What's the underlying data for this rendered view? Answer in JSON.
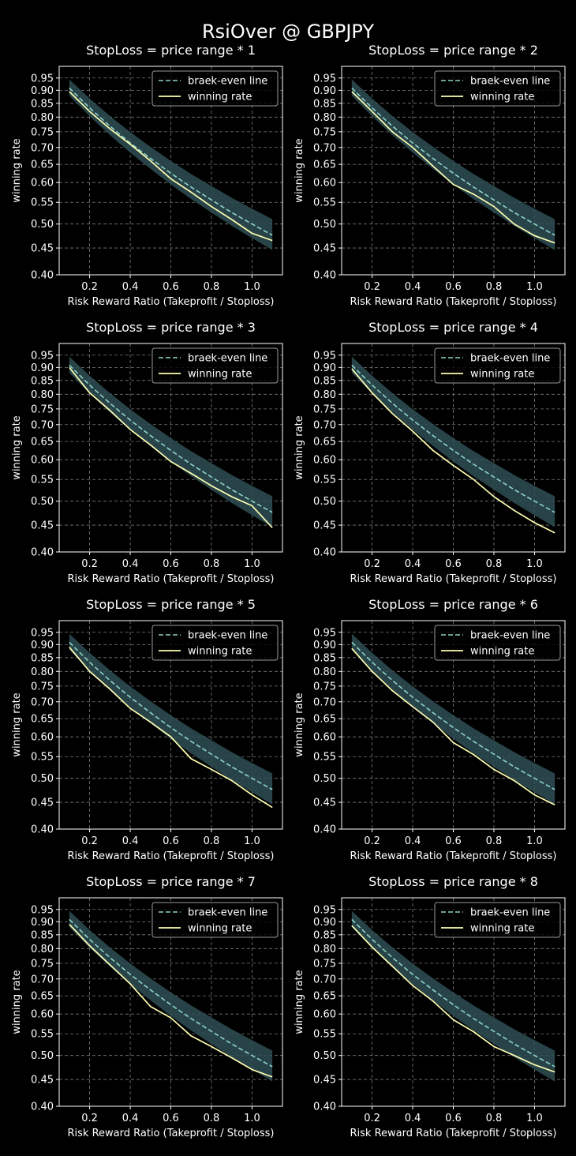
{
  "figure": {
    "title": "RsiOver @ GBPJPY"
  },
  "legend": {
    "breakeven_label": "braek-even line",
    "winrate_label": "winning rate"
  },
  "colors": {
    "background": "#000000",
    "breakeven_line": "#8dd3c7",
    "band_fill": "#2f4f55",
    "winrate_line": "#ffffb3",
    "grid": "#7a7a7a",
    "text": "#ffffff"
  },
  "chart_data": [
    {
      "type": "line",
      "title": "StopLoss = price range * 1",
      "xlabel": "Risk Reward Ratio (Takeprofit / Stoploss)",
      "ylabel": "winning rate",
      "xlim": [
        0.05,
        1.15
      ],
      "ylim": [
        0.4,
        1.0
      ],
      "yscale": "log",
      "xticks": [
        "0.2",
        "0.4",
        "0.6",
        "0.8",
        "1.0"
      ],
      "yticks": [
        "0.40",
        "0.45",
        "0.50",
        "0.55",
        "0.60",
        "0.65",
        "0.70",
        "0.75",
        "0.80",
        "0.85",
        "0.90",
        "0.95"
      ],
      "grid": true,
      "legend_position": "top-right",
      "x": [
        0.1,
        0.2,
        0.3,
        0.4,
        0.5,
        0.6,
        0.7,
        0.8,
        0.9,
        1.0,
        1.1
      ],
      "series": [
        {
          "name": "braek-even line",
          "values": [
            0.909,
            0.833,
            0.769,
            0.714,
            0.667,
            0.625,
            0.588,
            0.556,
            0.526,
            0.5,
            0.476
          ],
          "band": [
            0.03,
            0.035
          ]
        },
        {
          "name": "winning rate",
          "values": [
            0.895,
            0.82,
            0.76,
            0.71,
            0.66,
            0.61,
            0.575,
            0.54,
            0.51,
            0.48,
            0.465
          ]
        }
      ]
    },
    {
      "type": "line",
      "title": "StopLoss = price range * 2",
      "xlabel": "Risk Reward Ratio (Takeprofit / Stoploss)",
      "ylabel": "winning rate",
      "xlim": [
        0.05,
        1.15
      ],
      "ylim": [
        0.4,
        1.0
      ],
      "yscale": "log",
      "xticks": [
        "0.2",
        "0.4",
        "0.6",
        "0.8",
        "1.0"
      ],
      "yticks": [
        "0.40",
        "0.45",
        "0.50",
        "0.55",
        "0.60",
        "0.65",
        "0.70",
        "0.75",
        "0.80",
        "0.85",
        "0.90",
        "0.95"
      ],
      "grid": true,
      "legend_position": "top-right",
      "x": [
        0.1,
        0.2,
        0.3,
        0.4,
        0.5,
        0.6,
        0.7,
        0.8,
        0.9,
        1.0,
        1.1
      ],
      "series": [
        {
          "name": "braek-even line",
          "values": [
            0.909,
            0.833,
            0.769,
            0.714,
            0.667,
            0.625,
            0.588,
            0.556,
            0.526,
            0.5,
            0.476
          ],
          "band": [
            0.03,
            0.035
          ]
        },
        {
          "name": "winning rate",
          "values": [
            0.895,
            0.82,
            0.75,
            0.7,
            0.645,
            0.595,
            0.57,
            0.54,
            0.5,
            0.475,
            0.46
          ]
        }
      ]
    },
    {
      "type": "line",
      "title": "StopLoss = price range * 3",
      "xlabel": "Risk Reward Ratio (Takeprofit / Stoploss)",
      "ylabel": "winning rate",
      "xlim": [
        0.05,
        1.15
      ],
      "ylim": [
        0.4,
        1.0
      ],
      "yscale": "log",
      "xticks": [
        "0.2",
        "0.4",
        "0.6",
        "0.8",
        "1.0"
      ],
      "yticks": [
        "0.40",
        "0.45",
        "0.50",
        "0.55",
        "0.60",
        "0.65",
        "0.70",
        "0.75",
        "0.80",
        "0.85",
        "0.90",
        "0.95"
      ],
      "grid": true,
      "legend_position": "top-right",
      "x": [
        0.1,
        0.2,
        0.3,
        0.4,
        0.5,
        0.6,
        0.7,
        0.8,
        0.9,
        1.0,
        1.1
      ],
      "series": [
        {
          "name": "braek-even line",
          "values": [
            0.909,
            0.833,
            0.769,
            0.714,
            0.667,
            0.625,
            0.588,
            0.556,
            0.526,
            0.5,
            0.476
          ],
          "band": [
            0.03,
            0.035
          ]
        },
        {
          "name": "winning rate",
          "values": [
            0.9,
            0.805,
            0.745,
            0.685,
            0.64,
            0.595,
            0.565,
            0.535,
            0.51,
            0.49,
            0.445
          ]
        }
      ]
    },
    {
      "type": "line",
      "title": "StopLoss = price range * 4",
      "xlabel": "Risk Reward Ratio (Takeprofit / Stoploss)",
      "ylabel": "winning rate",
      "xlim": [
        0.05,
        1.15
      ],
      "ylim": [
        0.4,
        1.0
      ],
      "yscale": "log",
      "xticks": [
        "0.2",
        "0.4",
        "0.6",
        "0.8",
        "1.0"
      ],
      "yticks": [
        "0.40",
        "0.45",
        "0.50",
        "0.55",
        "0.60",
        "0.65",
        "0.70",
        "0.75",
        "0.80",
        "0.85",
        "0.90",
        "0.95"
      ],
      "grid": true,
      "legend_position": "top-right",
      "x": [
        0.1,
        0.2,
        0.3,
        0.4,
        0.5,
        0.6,
        0.7,
        0.8,
        0.9,
        1.0,
        1.1
      ],
      "series": [
        {
          "name": "braek-even line",
          "values": [
            0.909,
            0.833,
            0.769,
            0.714,
            0.667,
            0.625,
            0.588,
            0.556,
            0.526,
            0.5,
            0.476
          ],
          "band": [
            0.03,
            0.035
          ]
        },
        {
          "name": "winning rate",
          "values": [
            0.895,
            0.805,
            0.735,
            0.68,
            0.625,
            0.585,
            0.55,
            0.51,
            0.48,
            0.455,
            0.435
          ]
        }
      ]
    },
    {
      "type": "line",
      "title": "StopLoss = price range * 5",
      "xlabel": "Risk Reward Ratio (Takeprofit / Stoploss)",
      "ylabel": "winning rate",
      "xlim": [
        0.05,
        1.15
      ],
      "ylim": [
        0.4,
        1.0
      ],
      "yscale": "log",
      "xticks": [
        "0.2",
        "0.4",
        "0.6",
        "0.8",
        "1.0"
      ],
      "yticks": [
        "0.40",
        "0.45",
        "0.50",
        "0.55",
        "0.60",
        "0.65",
        "0.70",
        "0.75",
        "0.80",
        "0.85",
        "0.90",
        "0.95"
      ],
      "grid": true,
      "legend_position": "top-right",
      "x": [
        0.1,
        0.2,
        0.3,
        0.4,
        0.5,
        0.6,
        0.7,
        0.8,
        0.9,
        1.0,
        1.1
      ],
      "series": [
        {
          "name": "braek-even line",
          "values": [
            0.909,
            0.833,
            0.769,
            0.714,
            0.667,
            0.625,
            0.588,
            0.556,
            0.526,
            0.5,
            0.476
          ],
          "band": [
            0.03,
            0.035
          ]
        },
        {
          "name": "winning rate",
          "values": [
            0.89,
            0.8,
            0.74,
            0.68,
            0.64,
            0.6,
            0.545,
            0.52,
            0.495,
            0.465,
            0.44
          ]
        }
      ]
    },
    {
      "type": "line",
      "title": "StopLoss = price range * 6",
      "xlabel": "Risk Reward Ratio (Takeprofit / Stoploss)",
      "ylabel": "winning rate",
      "xlim": [
        0.05,
        1.15
      ],
      "ylim": [
        0.4,
        1.0
      ],
      "yscale": "log",
      "xticks": [
        "0.2",
        "0.4",
        "0.6",
        "0.8",
        "1.0"
      ],
      "yticks": [
        "0.40",
        "0.45",
        "0.50",
        "0.55",
        "0.60",
        "0.65",
        "0.70",
        "0.75",
        "0.80",
        "0.85",
        "0.90",
        "0.95"
      ],
      "grid": true,
      "legend_position": "top-right",
      "x": [
        0.1,
        0.2,
        0.3,
        0.4,
        0.5,
        0.6,
        0.7,
        0.8,
        0.9,
        1.0,
        1.1
      ],
      "series": [
        {
          "name": "braek-even line",
          "values": [
            0.909,
            0.833,
            0.769,
            0.714,
            0.667,
            0.625,
            0.588,
            0.556,
            0.526,
            0.5,
            0.476
          ],
          "band": [
            0.03,
            0.035
          ]
        },
        {
          "name": "winning rate",
          "values": [
            0.885,
            0.8,
            0.735,
            0.685,
            0.64,
            0.585,
            0.555,
            0.52,
            0.495,
            0.465,
            0.445
          ]
        }
      ]
    },
    {
      "type": "line",
      "title": "StopLoss = price range * 7",
      "xlabel": "Risk Reward Ratio (Takeprofit / Stoploss)",
      "ylabel": "winning rate",
      "xlim": [
        0.05,
        1.15
      ],
      "ylim": [
        0.4,
        1.0
      ],
      "yscale": "log",
      "xticks": [
        "0.2",
        "0.4",
        "0.6",
        "0.8",
        "1.0"
      ],
      "yticks": [
        "0.40",
        "0.45",
        "0.50",
        "0.55",
        "0.60",
        "0.65",
        "0.70",
        "0.75",
        "0.80",
        "0.85",
        "0.90",
        "0.95"
      ],
      "grid": true,
      "legend_position": "top-right",
      "x": [
        0.1,
        0.2,
        0.3,
        0.4,
        0.5,
        0.6,
        0.7,
        0.8,
        0.9,
        1.0,
        1.1
      ],
      "series": [
        {
          "name": "braek-even line",
          "values": [
            0.909,
            0.833,
            0.769,
            0.714,
            0.667,
            0.625,
            0.588,
            0.556,
            0.526,
            0.5,
            0.476
          ],
          "band": [
            0.03,
            0.035
          ]
        },
        {
          "name": "winning rate",
          "values": [
            0.89,
            0.81,
            0.745,
            0.685,
            0.62,
            0.59,
            0.545,
            0.52,
            0.495,
            0.47,
            0.455
          ]
        }
      ]
    },
    {
      "type": "line",
      "title": "StopLoss = price range * 8",
      "xlabel": "Risk Reward Ratio (Takeprofit / Stoploss)",
      "ylabel": "winning rate",
      "xlim": [
        0.05,
        1.15
      ],
      "ylim": [
        0.4,
        1.0
      ],
      "yscale": "log",
      "xticks": [
        "0.2",
        "0.4",
        "0.6",
        "0.8",
        "1.0"
      ],
      "yticks": [
        "0.40",
        "0.45",
        "0.50",
        "0.55",
        "0.60",
        "0.65",
        "0.70",
        "0.75",
        "0.80",
        "0.85",
        "0.90",
        "0.95"
      ],
      "grid": true,
      "legend_position": "top-right",
      "x": [
        0.1,
        0.2,
        0.3,
        0.4,
        0.5,
        0.6,
        0.7,
        0.8,
        0.9,
        1.0,
        1.1
      ],
      "series": [
        {
          "name": "braek-even line",
          "values": [
            0.909,
            0.833,
            0.769,
            0.714,
            0.667,
            0.625,
            0.588,
            0.556,
            0.526,
            0.5,
            0.476
          ],
          "band": [
            0.03,
            0.035
          ]
        },
        {
          "name": "winning rate",
          "values": [
            0.885,
            0.805,
            0.74,
            0.68,
            0.635,
            0.585,
            0.555,
            0.52,
            0.5,
            0.48,
            0.465
          ]
        }
      ]
    }
  ]
}
